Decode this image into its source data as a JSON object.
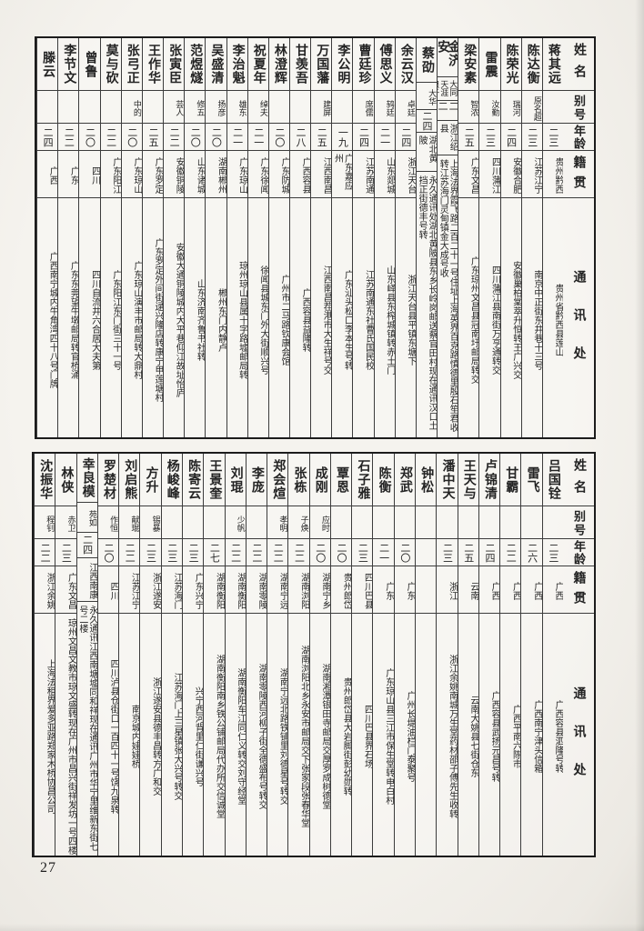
{
  "page": {
    "number": "27"
  },
  "colors": {
    "paper": "#f5f3ee",
    "ink": "#242424",
    "border": "#3c3c3c"
  },
  "headers": {
    "name": "姓名",
    "alias": "别号",
    "age": "年龄",
    "origin": "籍贯",
    "address": "通讯处"
  },
  "tables": [
    {
      "id": "upper",
      "people": [
        {
          "name": "蒋其远",
          "alias": "",
          "age": "二三",
          "origin": "贵州黔西",
          "address": "贵州省黔西县莲山"
        },
        {
          "name": "陈达衡",
          "alias": "原名超",
          "age": "二三",
          "origin": "江苏江宁",
          "address": "南京中正街东井巷十三号"
        },
        {
          "name": "陈荣光",
          "alias": "瑞河",
          "age": "二四",
          "origin": "安徽合肥",
          "address": "安徽巢柏棠萃升恒转王广兴交"
        },
        {
          "name": "雷震",
          "alias": "汝勤",
          "age": "二三",
          "origin": "四川蒲江",
          "address": "四川蒲江县南街万亨通转交"
        },
        {
          "name": "梁安素",
          "alias": "智浓",
          "age": "二五",
          "origin": "广东文昌",
          "address": "广东琼州文昌县冠南圩邮局转交"
        },
        {
          "name": "金济安",
          "alias": "大同天涯浪子",
          "age": "二二",
          "origin": "浙江绍县",
          "address": "上海法界霞飞路二百二十一号住址上海英界百克路慎德里殷石笙君收转江苏海门灵甸镇金大成号收"
        },
        {
          "name": "蔡劭",
          "alias": "大华",
          "age": "二四",
          "origin": "湖北黄陂",
          "address": "永久通讯处湖北黄陂县东乡长岭岗邮送蔡官田村现在通讯汉口土挡正街德丰号转"
        },
        {
          "name": "余云汉",
          "alias": "卓廷",
          "age": "二四",
          "origin": "浙江天台",
          "address": "浙江天台县平镇东塘下"
        },
        {
          "name": "傅思义",
          "alias": "鸫廷",
          "age": "二一",
          "origin": "山东郯城",
          "address": "山东峄县东榨城镇转赤土门"
        },
        {
          "name": "曹廷珍",
          "alias": "席儒",
          "age": "二四",
          "origin": "江苏南通",
          "address": "江苏南通东社曹氏国民校"
        },
        {
          "name": "李公明",
          "alias": "",
          "age": "一九",
          "origin": "广东嘉应州",
          "address": "广东汕头松口李本生号转"
        },
        {
          "name": "万国藩",
          "alias": "建屏",
          "age": "二五",
          "origin": "江西南昌",
          "address": "江西南昌茬港市大生祥号交"
        },
        {
          "name": "甘羡吾",
          "alias": "",
          "age": "二八",
          "origin": "广西容县",
          "address": "广西容县益隆转"
        },
        {
          "name": "林澄辉",
          "alias": "",
          "age": "二〇",
          "origin": "广东防城",
          "address": "广州市二马路钦康会馆"
        },
        {
          "name": "祝夏年",
          "alias": "绰夫",
          "age": "二一",
          "origin": "广东徐闻",
          "address": "徐闻县城东门外大街顺兴号"
        },
        {
          "name": "李治魁",
          "alias": "雄东",
          "age": "二一",
          "origin": "广东琼山",
          "address": "琼州琼山县属十字路墟邮局转"
        },
        {
          "name": "吴盛清",
          "alias": "扬彦",
          "age": "二〇",
          "origin": "湖南郴州",
          "address": "郴州东门内静卢"
        },
        {
          "name": "范煜燧",
          "alias": "修五",
          "age": "二〇",
          "origin": "山东诸城",
          "address": "山东济南齐鲁书社转"
        },
        {
          "name": "张寅臣",
          "alias": "芸人",
          "age": "二二",
          "origin": "安徽铜陵",
          "address": "安徽大通铜陵城内大平巷仰江故址怡庐"
        },
        {
          "name": "王作华",
          "alias": "",
          "age": "二五",
          "origin": "广东罗定",
          "address": "广东罗定外间街逯兴隆店转康宁甲莲塘村"
        },
        {
          "name": "张弓正",
          "alias": "中的",
          "age": "二〇",
          "origin": "广东琼山",
          "address": "广东琼山演丰市邮局转大鼎村"
        },
        {
          "name": "莫与砍",
          "alias": "",
          "age": "二二",
          "origin": "广东阳江",
          "address": "广东阳江东门街三十一号"
        },
        {
          "name": "曾鲁",
          "alias": "",
          "age": "二〇",
          "origin": "四川",
          "address": "四川自流井六合居大夫第"
        },
        {
          "name": "李节文",
          "alias": "",
          "age": "二二",
          "origin": "广东",
          "address": "广东东莞望牛墩邮局转官桥涌"
        },
        {
          "name": "滕云",
          "alias": "",
          "age": "二四",
          "origin": "广西",
          "address": "广西南宁城内牛角湾四十八号门牌"
        }
      ]
    },
    {
      "id": "lower",
      "people": [
        {
          "name": "吕国铨",
          "alias": "",
          "age": "二三",
          "origin": "广西",
          "address": "广西容县泗隆号转"
        },
        {
          "name": "雷飞",
          "alias": "",
          "age": "二六",
          "origin": "广西",
          "address": "广西南宁津头信箱"
        },
        {
          "name": "甘霸",
          "alias": "",
          "age": "二二",
          "origin": "广西",
          "address": "广西平南六陈市"
        },
        {
          "name": "卢锦清",
          "alias": "",
          "age": "二四",
          "origin": "广西",
          "address": "广西容县武扬元昌号转"
        },
        {
          "name": "王天与",
          "alias": "",
          "age": "二五",
          "origin": "云南",
          "address": "云南大姚县七街仓东"
        },
        {
          "name": "潘中天",
          "alias": "",
          "age": "二三",
          "origin": "浙江",
          "address": "浙江余姚南城万生堂药材邵子傅先生收转"
        },
        {
          "name": "钟松",
          "alias": "",
          "age": "",
          "origin": "",
          "address": ""
        },
        {
          "name": "郑武",
          "alias": "",
          "age": "二〇",
          "origin": "广东",
          "address": "广州长堤油栏门泰聚号"
        },
        {
          "name": "陈衡",
          "alias": "",
          "age": "二一",
          "origin": "广东",
          "address": "广东琼山县三江市保生堂转电白村"
        },
        {
          "name": "石子雅",
          "alias": "",
          "age": "二三",
          "origin": "四川巴县",
          "address": "四川巴县界石场"
        },
        {
          "name": "覃恩",
          "alias": "",
          "age": "二〇",
          "origin": "贵州郎岱",
          "address": "贵州郎岱县大岩脚街彭幼勋转"
        },
        {
          "name": "成刚",
          "alias": "应时",
          "age": "二〇",
          "origin": "湖南宁乡",
          "address": "湖南湘潭银田寺邮局交厚罗成树德堂"
        },
        {
          "name": "张栋",
          "alias": "子焕",
          "age": "二二",
          "origin": "湖南浏阳",
          "address": "湖南浏阳北乡永安市邮局交下张家段张春华堂"
        },
        {
          "name": "郑会煊",
          "alias": "孝明",
          "age": "二二",
          "origin": "湖南宁远",
          "address": "湖南宁远北路铁铺里刘德星号转交"
        },
        {
          "name": "李庞",
          "alias": "",
          "age": "二二",
          "origin": "湖南零陵",
          "address": "湖南零陵西河柳子街全德盛布号转交"
        },
        {
          "name": "刘琨",
          "alias": "少帆",
          "age": "二二",
          "origin": "湖南衡阳",
          "address": "湖南衡阳车江同仁义转交刘守经堂"
        },
        {
          "name": "王景奎",
          "alias": "",
          "age": "二七",
          "origin": "湖南衡阳",
          "address": "湖南衡阳南乡铁公铺邮局代办所交信诚堂"
        },
        {
          "name": "陈寄云",
          "alias": "",
          "age": "二三",
          "origin": "广东兴宁",
          "address": "兴宁西河背里仁街谦兴号"
        },
        {
          "name": "杨峻峰",
          "alias": "",
          "age": "二三",
          "origin": "江苏海门",
          "address": "江苏海门上三星镇张大兴号转交"
        },
        {
          "name": "方升",
          "alias": "锡暴",
          "age": "二三",
          "origin": "浙江遂安",
          "address": "浙江遂安县德丰昌转方广和交"
        },
        {
          "name": "刘启熊",
          "alias": "献琨",
          "age": "二二",
          "origin": "江苏江宁",
          "address": "南京城内娃娃桥"
        },
        {
          "name": "罗楚材",
          "alias": "作恒",
          "age": "二〇",
          "origin": "四川",
          "address": "四川泸县仓街口一百四十一号饶九泉转"
        },
        {
          "name": "幸良模",
          "alias": "苑如",
          "age": "二四",
          "origin": "江西南康",
          "address": "永久通讯江西南塘墟同和祥现在通讯广州市华宁里维新东街七号二楼"
        },
        {
          "name": "林侠",
          "alias": "赤卫",
          "age": "二三",
          "origin": "广东文昌",
          "address": "琼州文昌文教市琼文盛转现在广州市昌兴街祥发坊一号四楼"
        },
        {
          "name": "沈振华",
          "alias": "程钊",
          "age": "二二",
          "origin": "浙江余姚",
          "address": "上海法租界爱多亚路郑家木桥协昌公司"
        }
      ]
    }
  ]
}
